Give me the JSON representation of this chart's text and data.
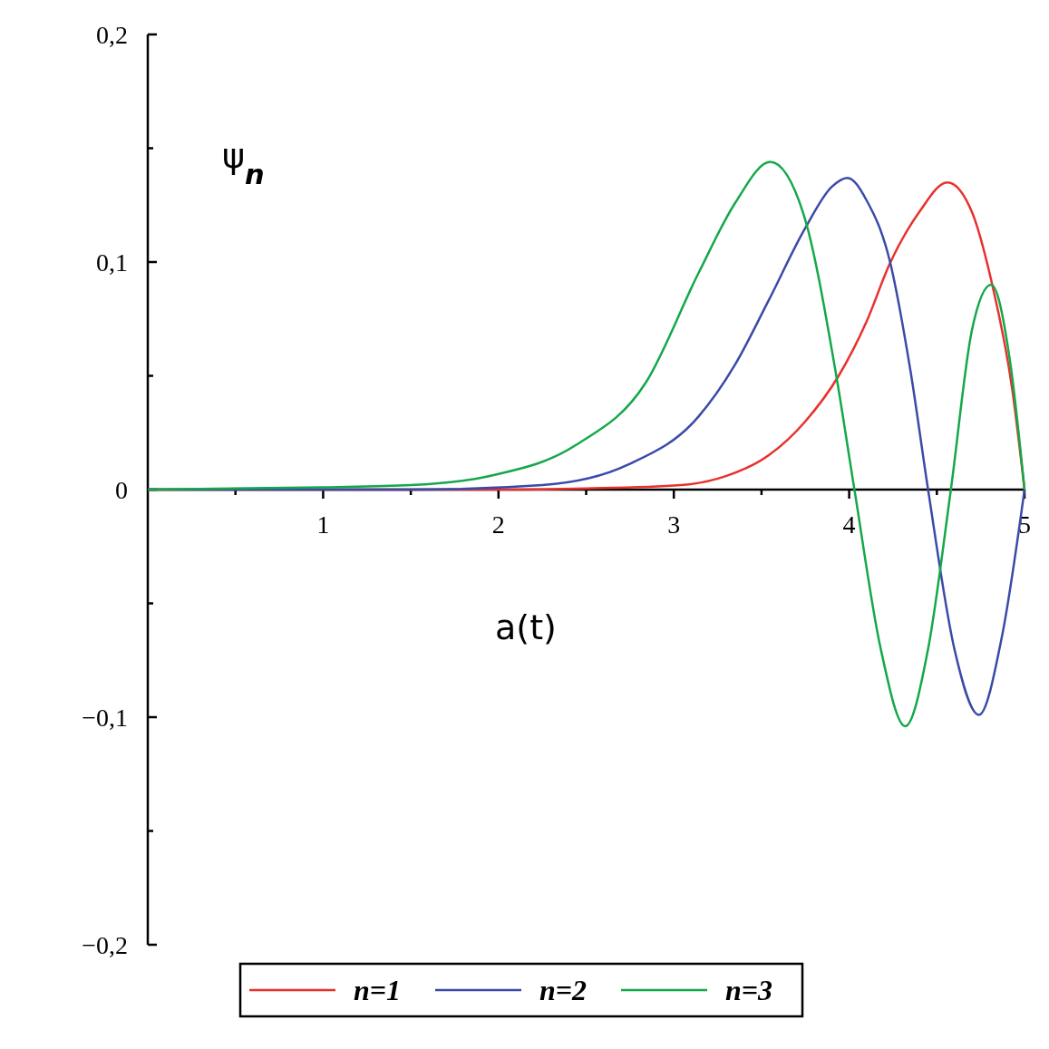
{
  "chart_data": {
    "type": "line",
    "xlabel": "a(t)",
    "ylabel": "ψ$_{n}$",
    "xlim": [
      0,
      5
    ],
    "ylim": [
      -0.2,
      0.2
    ],
    "xticks": [
      {
        "value": 0.5,
        "label": null
      },
      1,
      {
        "value": 1.5,
        "label": null
      },
      2,
      {
        "value": 2.5,
        "label": null
      },
      3,
      {
        "value": 3.5,
        "label": null
      },
      4,
      {
        "value": 4.5,
        "label": null
      },
      5
    ],
    "yticks": [
      {
        "value": -0.2,
        "label": "−0,2"
      },
      {
        "value": -0.15,
        "label": null
      },
      {
        "value": -0.1,
        "label": "−0,1"
      },
      {
        "value": -0.05,
        "label": null
      },
      0,
      {
        "value": 0.05,
        "label": null
      },
      {
        "value": 0.1,
        "label": "0,1"
      },
      {
        "value": 0.15,
        "label": null
      },
      {
        "value": 0.2,
        "label": "0,2"
      }
    ],
    "grid": false,
    "legend": "bottom",
    "line_style": "solid",
    "marker": "none",
    "series": [
      {
        "name": "n=1",
        "color": "#e8312e",
        "x": [
          0,
          2,
          2.5,
          3.04,
          3.3,
          3.54,
          3.75,
          3.94,
          4.1,
          4.23,
          4.4,
          4.56,
          4.7,
          4.81,
          4.93,
          5
        ],
        "values": [
          0,
          0,
          0.0005,
          0.002,
          0.006,
          0.015,
          0.03,
          0.05,
          0.074,
          0.099,
          0.122,
          0.135,
          0.122,
          0.092,
          0.044,
          0
        ]
      },
      {
        "name": "n=2",
        "color": "#3a4aa8",
        "x": [
          0,
          1.5,
          2.25,
          2.74,
          3.14,
          3.35,
          3.54,
          3.75,
          3.9,
          3.99,
          4.1,
          4.23,
          4.35,
          4.45,
          4.6,
          4.74,
          4.87,
          5
        ],
        "values": [
          0,
          0,
          0.002,
          0.011,
          0.032,
          0.055,
          0.083,
          0.115,
          0.133,
          0.137,
          0.127,
          0.101,
          0.052,
          0,
          -0.07,
          -0.099,
          -0.065,
          0
        ]
      },
      {
        "name": "n=3",
        "color": "#14a84a",
        "x": [
          0,
          1,
          1.5,
          1.95,
          2.44,
          2.84,
          3.14,
          3.35,
          3.55,
          3.74,
          3.92,
          4.03,
          4.18,
          4.32,
          4.45,
          4.58,
          4.7,
          4.81,
          4.92,
          5
        ],
        "values": [
          0,
          0.001,
          0.002,
          0.006,
          0.0195,
          0.047,
          0.095,
          0.126,
          0.144,
          0.121,
          0.053,
          0,
          -0.07,
          -0.104,
          -0.07,
          0,
          0.07,
          0.09,
          0.055,
          0
        ]
      }
    ]
  }
}
